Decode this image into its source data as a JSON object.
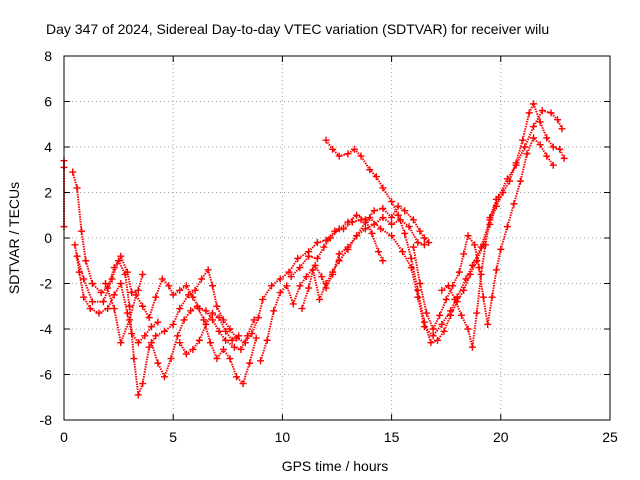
{
  "chart_data": {
    "type": "scatter",
    "title": "Day 347 of 2024, Sidereal Day-to-day VTEC variation (SDTVAR) for receiver wilu",
    "xlabel": "GPS time / hours",
    "ylabel": "SDTVAR / TECUs",
    "xlim": [
      0,
      25
    ],
    "ylim": [
      -8,
      8
    ],
    "xticks": [
      0,
      5,
      10,
      15,
      20,
      25
    ],
    "yticks": [
      -8,
      -6,
      -4,
      -2,
      0,
      2,
      4,
      6,
      8
    ],
    "grid": true,
    "marker": "+",
    "color": "#ff0000",
    "series": [
      {
        "name": "isolated-points",
        "points": [
          [
            0,
            3.4
          ],
          [
            0,
            3.1
          ],
          [
            0,
            0.5
          ]
        ]
      },
      {
        "name": "track-1",
        "points": [
          [
            0.4,
            2.9
          ],
          [
            0.6,
            2.2
          ],
          [
            0.8,
            0.3
          ],
          [
            1.0,
            -1.0
          ],
          [
            1.3,
            -2.0
          ],
          [
            1.7,
            -2.4
          ],
          [
            2.0,
            -2.2
          ],
          [
            2.3,
            -1.3
          ],
          [
            2.6,
            -0.8
          ],
          [
            2.9,
            -1.5
          ],
          [
            3.1,
            -2.4
          ],
          [
            3.4,
            -2.3
          ],
          [
            3.6,
            -1.6
          ]
        ]
      },
      {
        "name": "track-2",
        "points": [
          [
            0.5,
            -0.3
          ],
          [
            0.7,
            -1.5
          ],
          [
            0.9,
            -2.6
          ],
          [
            1.2,
            -3.1
          ],
          [
            1.6,
            -3.3
          ],
          [
            2.0,
            -3.1
          ],
          [
            2.3,
            -2.5
          ],
          [
            2.6,
            -2.0
          ],
          [
            2.9,
            -3.3
          ],
          [
            3.1,
            -4.2
          ],
          [
            3.4,
            -4.6
          ],
          [
            3.7,
            -4.3
          ],
          [
            4.0,
            -3.9
          ],
          [
            4.3,
            -3.7
          ]
        ]
      },
      {
        "name": "track-3",
        "points": [
          [
            0.6,
            -0.8
          ],
          [
            0.9,
            -1.8
          ],
          [
            1.3,
            -2.8
          ],
          [
            1.8,
            -2.8
          ],
          [
            2.2,
            -1.8
          ],
          [
            2.5,
            -1.0
          ],
          [
            2.8,
            -1.6
          ],
          [
            3.0,
            -3.0
          ],
          [
            3.2,
            -5.3
          ],
          [
            3.4,
            -6.9
          ],
          [
            3.6,
            -6.4
          ],
          [
            3.9,
            -4.8
          ],
          [
            4.2,
            -4.3
          ],
          [
            4.6,
            -4.1
          ],
          [
            5.0,
            -3.8
          ],
          [
            5.3,
            -3.1
          ],
          [
            5.7,
            -2.5
          ],
          [
            6.0,
            -2.3
          ],
          [
            6.3,
            -1.8
          ],
          [
            6.6,
            -1.4
          ],
          [
            6.8,
            -2.1
          ],
          [
            7.0,
            -3.0
          ],
          [
            7.3,
            -3.6
          ],
          [
            7.6,
            -4.0
          ],
          [
            7.9,
            -4.4
          ],
          [
            8.3,
            -4.6
          ],
          [
            8.6,
            -4.2
          ],
          [
            8.9,
            -3.5
          ],
          [
            9.1,
            -2.7
          ],
          [
            9.5,
            -2.1
          ],
          [
            9.9,
            -1.8
          ],
          [
            10.3,
            -1.5
          ],
          [
            10.7,
            -0.9
          ],
          [
            11.2,
            -0.6
          ],
          [
            11.6,
            -0.2
          ],
          [
            12.0,
            -0.1
          ],
          [
            12.4,
            0.3
          ],
          [
            12.8,
            0.4
          ],
          [
            13.2,
            0.7
          ],
          [
            13.6,
            0.8
          ],
          [
            14.0,
            0.9
          ],
          [
            14.5,
            0.4
          ],
          [
            15.0,
            0.1
          ],
          [
            15.5,
            -0.6
          ],
          [
            15.9,
            -1.3
          ],
          [
            16.2,
            -2.6
          ],
          [
            16.5,
            -3.9
          ],
          [
            16.9,
            -4.3
          ],
          [
            17.3,
            -3.8
          ],
          [
            17.7,
            -3.2
          ],
          [
            18.0,
            -2.6
          ],
          [
            18.4,
            -1.8
          ],
          [
            18.7,
            -1.2
          ],
          [
            19.1,
            -0.4
          ],
          [
            19.5,
            0.8
          ],
          [
            19.9,
            1.8
          ],
          [
            20.3,
            2.6
          ],
          [
            20.7,
            3.2
          ],
          [
            21.1,
            4.0
          ],
          [
            21.5,
            4.9
          ],
          [
            21.9,
            5.6
          ],
          [
            22.3,
            5.5
          ],
          [
            22.6,
            5.2
          ],
          [
            22.8,
            4.8
          ]
        ]
      },
      {
        "name": "track-4",
        "points": [
          [
            1.9,
            -2.0
          ],
          [
            2.3,
            -3.1
          ],
          [
            2.6,
            -4.6
          ],
          [
            3.0,
            -3.6
          ],
          [
            3.3,
            -2.5
          ],
          [
            3.6,
            -3.0
          ],
          [
            3.9,
            -3.5
          ],
          [
            4.2,
            -2.6
          ],
          [
            4.5,
            -1.8
          ],
          [
            4.8,
            -2.1
          ],
          [
            5.0,
            -2.5
          ],
          [
            5.3,
            -2.3
          ],
          [
            5.6,
            -2.1
          ],
          [
            5.9,
            -2.6
          ],
          [
            6.2,
            -3.1
          ],
          [
            6.5,
            -3.2
          ],
          [
            6.8,
            -3.6
          ],
          [
            7.1,
            -4.1
          ],
          [
            7.4,
            -4.5
          ],
          [
            7.8,
            -4.8
          ],
          [
            8.1,
            -4.9
          ],
          [
            8.4,
            -4.3
          ],
          [
            8.7,
            -3.6
          ]
        ]
      },
      {
        "name": "track-5",
        "points": [
          [
            4.0,
            -4.6
          ],
          [
            4.3,
            -5.5
          ],
          [
            4.6,
            -6.1
          ],
          [
            4.9,
            -5.3
          ],
          [
            5.2,
            -4.3
          ],
          [
            5.5,
            -3.6
          ],
          [
            5.8,
            -3.2
          ],
          [
            6.1,
            -3.0
          ],
          [
            6.4,
            -3.6
          ],
          [
            6.7,
            -4.6
          ],
          [
            7.0,
            -5.3
          ],
          [
            7.3,
            -4.9
          ],
          [
            7.6,
            -5.3
          ],
          [
            7.9,
            -6.1
          ],
          [
            8.2,
            -6.4
          ],
          [
            8.5,
            -5.5
          ],
          [
            8.8,
            -4.4
          ]
        ]
      },
      {
        "name": "track-6",
        "points": [
          [
            5.3,
            -4.6
          ],
          [
            5.6,
            -5.1
          ],
          [
            5.9,
            -4.9
          ],
          [
            6.2,
            -4.5
          ],
          [
            6.5,
            -3.8
          ],
          [
            6.8,
            -3.3
          ],
          [
            7.1,
            -3.5
          ],
          [
            7.4,
            -4.1
          ],
          [
            7.7,
            -4.5
          ],
          [
            8.0,
            -4.3
          ]
        ]
      },
      {
        "name": "track-7",
        "points": [
          [
            9.0,
            -5.4
          ],
          [
            9.3,
            -4.5
          ],
          [
            9.6,
            -3.2
          ],
          [
            9.9,
            -2.4
          ],
          [
            10.2,
            -2.1
          ],
          [
            10.5,
            -2.9
          ],
          [
            10.8,
            -2.1
          ],
          [
            11.1,
            -1.7
          ],
          [
            11.5,
            -1.2
          ],
          [
            11.8,
            -1.7
          ],
          [
            12.0,
            -2.2
          ],
          [
            12.3,
            -1.6
          ],
          [
            12.6,
            -0.7
          ],
          [
            13.0,
            -0.4
          ],
          [
            13.4,
            0.1
          ],
          [
            13.8,
            0.4
          ],
          [
            14.2,
            0.6
          ],
          [
            14.6,
            0.9
          ],
          [
            15.0,
            0.6
          ],
          [
            15.4,
            0.8
          ],
          [
            15.8,
            0.5
          ],
          [
            16.2,
            -0.2
          ],
          [
            16.5,
            -0.3
          ]
        ]
      },
      {
        "name": "track-8",
        "points": [
          [
            10.4,
            -1.7
          ],
          [
            10.8,
            -1.3
          ],
          [
            11.2,
            -0.8
          ],
          [
            11.6,
            -0.9
          ],
          [
            11.9,
            -0.4
          ],
          [
            12.2,
            0.0
          ],
          [
            12.6,
            0.4
          ],
          [
            13.0,
            0.7
          ],
          [
            13.4,
            1.0
          ],
          [
            13.8,
            0.8
          ],
          [
            14.1,
            0.2
          ],
          [
            14.4,
            -0.6
          ],
          [
            14.6,
            -1.0
          ]
        ]
      },
      {
        "name": "track-9",
        "points": [
          [
            10.9,
            -3.1
          ],
          [
            11.2,
            -2.2
          ],
          [
            11.4,
            -1.4
          ],
          [
            11.7,
            -2.7
          ],
          [
            12.0,
            -2.0
          ],
          [
            12.3,
            -1.5
          ],
          [
            12.6,
            -1.0
          ],
          [
            13.0,
            -0.5
          ],
          [
            13.4,
            0.1
          ],
          [
            13.8,
            0.7
          ],
          [
            14.2,
            1.2
          ],
          [
            14.6,
            1.3
          ],
          [
            15.0,
            0.9
          ],
          [
            15.3,
            1.4
          ],
          [
            15.6,
            1.2
          ],
          [
            16.0,
            0.8
          ],
          [
            16.3,
            0.3
          ],
          [
            16.5,
            0.0
          ],
          [
            16.7,
            -0.2
          ]
        ]
      },
      {
        "name": "track-10",
        "points": [
          [
            12.0,
            4.3
          ],
          [
            12.3,
            3.9
          ],
          [
            12.6,
            3.6
          ],
          [
            13.0,
            3.7
          ],
          [
            13.3,
            3.9
          ],
          [
            13.6,
            3.6
          ],
          [
            14.0,
            3.0
          ],
          [
            14.3,
            2.7
          ],
          [
            14.6,
            2.2
          ],
          [
            15.0,
            1.6
          ],
          [
            15.3,
            1.0
          ],
          [
            15.6,
            0.2
          ],
          [
            15.9,
            -0.9
          ],
          [
            16.2,
            -2.3
          ],
          [
            16.5,
            -3.7
          ],
          [
            16.8,
            -4.6
          ],
          [
            17.1,
            -4.5
          ],
          [
            17.4,
            -4.1
          ],
          [
            17.7,
            -3.4
          ],
          [
            18.0,
            -2.8
          ],
          [
            18.3,
            -2.3
          ],
          [
            18.6,
            -1.6
          ],
          [
            18.9,
            -1.0
          ],
          [
            19.2,
            -0.3
          ],
          [
            19.5,
            0.6
          ],
          [
            19.8,
            1.4
          ],
          [
            20.1,
            2.0
          ],
          [
            20.4,
            2.5
          ],
          [
            20.7,
            3.3
          ],
          [
            21.0,
            4.3
          ],
          [
            21.3,
            5.5
          ],
          [
            21.5,
            5.9
          ],
          [
            21.8,
            5.1
          ],
          [
            22.1,
            4.4
          ],
          [
            22.4,
            4.0
          ],
          [
            22.7,
            3.9
          ],
          [
            22.9,
            3.5
          ]
        ]
      },
      {
        "name": "track-11",
        "points": [
          [
            16.0,
            -0.4
          ],
          [
            16.3,
            -2.0
          ],
          [
            16.6,
            -3.3
          ],
          [
            16.9,
            -4.0
          ],
          [
            17.2,
            -3.4
          ],
          [
            17.5,
            -2.7
          ],
          [
            17.8,
            -2.1
          ],
          [
            18.1,
            -1.5
          ],
          [
            18.3,
            -0.7
          ],
          [
            18.5,
            0.1
          ],
          [
            18.8,
            -0.3
          ],
          [
            19.0,
            -1.3
          ],
          [
            19.2,
            -2.6
          ],
          [
            19.4,
            -3.8
          ],
          [
            19.6,
            -2.6
          ],
          [
            19.8,
            -1.4
          ],
          [
            20.0,
            -0.5
          ],
          [
            20.3,
            0.5
          ],
          [
            20.6,
            1.5
          ],
          [
            20.9,
            2.5
          ],
          [
            21.2,
            3.7
          ],
          [
            21.5,
            4.4
          ],
          [
            21.8,
            4.1
          ],
          [
            22.1,
            3.6
          ],
          [
            22.4,
            3.2
          ]
        ]
      },
      {
        "name": "track-12",
        "points": [
          [
            17.3,
            -2.3
          ],
          [
            17.6,
            -2.1
          ],
          [
            17.9,
            -2.7
          ],
          [
            18.2,
            -3.4
          ],
          [
            18.5,
            -4.0
          ],
          [
            18.7,
            -4.8
          ],
          [
            18.9,
            -3.3
          ],
          [
            19.1,
            -1.6
          ],
          [
            19.3,
            -0.3
          ],
          [
            19.5,
            0.9
          ],
          [
            19.8,
            1.7
          ]
        ]
      }
    ]
  }
}
